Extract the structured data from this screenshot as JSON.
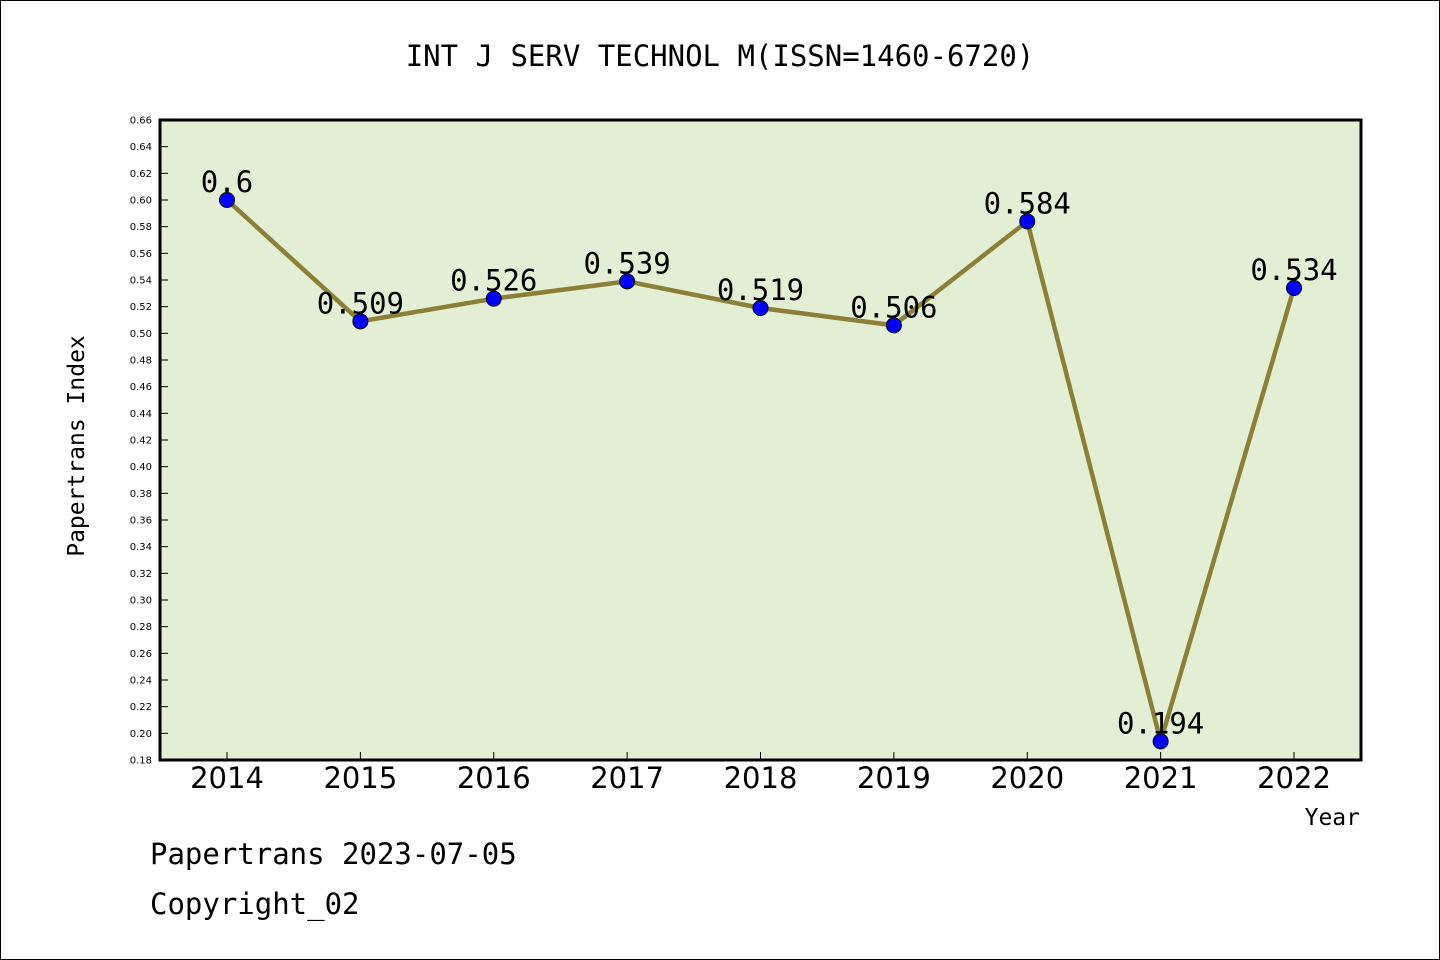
{
  "chart_data": {
    "type": "line",
    "title": "INT J SERV TECHNOL M(ISSN=1460-6720)",
    "xlabel": "Year",
    "ylabel": "Papertrans Index",
    "categories": [
      "2014",
      "2015",
      "2016",
      "2017",
      "2018",
      "2019",
      "2020",
      "2021",
      "2022"
    ],
    "series": [
      {
        "values": [
          0.6,
          0.509,
          0.526,
          0.539,
          0.519,
          0.506,
          0.584,
          0.194,
          0.534
        ],
        "labels": [
          "0.6",
          "0.509",
          "0.526",
          "0.539",
          "0.519",
          "0.506",
          "0.584",
          "0.194",
          "0.534"
        ]
      }
    ],
    "ylim": [
      0.18,
      0.66
    ],
    "ytick_step": 0.02,
    "grid": false,
    "legend": "none",
    "colors": {
      "plot_background": "#e2efd4",
      "line": "#8c8038",
      "marker": "#0000ff"
    }
  },
  "footer": {
    "date_line": "Papertrans 2023-07-05",
    "copyright": "Copyright_02"
  }
}
